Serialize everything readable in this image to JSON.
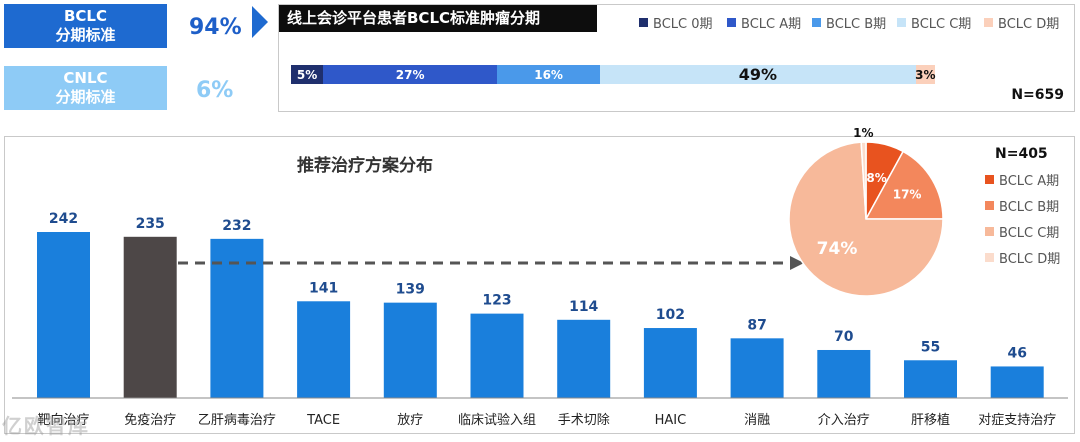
{
  "standards": [
    {
      "label_line1": "BCLC",
      "label_line2": "分期标准",
      "percent": "94%",
      "bg": "#1e6ad0",
      "pct_color": "#1e5fc8"
    },
    {
      "label_line1": "CNLC",
      "label_line2": "分期标准",
      "percent": "6%",
      "bg": "#8ecbf6",
      "pct_color": "#8ecbf6"
    }
  ],
  "stage_panel": {
    "title": "线上会诊平台患者BCLC标准肿瘤分期",
    "n_label": "N=659",
    "legend": [
      {
        "label": "BCLC 0期",
        "color": "#1f2f6d"
      },
      {
        "label": "BCLC A期",
        "color": "#2f58c9"
      },
      {
        "label": "BCLC B期",
        "color": "#4a99ea"
      },
      {
        "label": "BCLC C期",
        "color": "#c6e4f8"
      },
      {
        "label": "BCLC D期",
        "color": "#fbd0bb"
      }
    ]
  },
  "treatment_panel": {
    "title": "推荐治疗方案分布",
    "n_label": "N=405",
    "pie_legend": [
      {
        "label": "BCLC A期",
        "color": "#e8531f"
      },
      {
        "label": "BCLC B期",
        "color": "#f3875c"
      },
      {
        "label": "BCLC C期",
        "color": "#f7b99a"
      },
      {
        "label": "BCLC D期",
        "color": "#fbdccc"
      }
    ]
  },
  "watermark": "亿欧智库",
  "chart_data": [
    {
      "type": "bar",
      "orientation": "horizontal-stacked",
      "title": "线上会诊平台患者BCLC标准肿瘤分期",
      "categories": [
        "BCLC 0期",
        "BCLC A期",
        "BCLC B期",
        "BCLC C期",
        "BCLC D期"
      ],
      "values": [
        5,
        27,
        16,
        49,
        3
      ],
      "value_labels": [
        "5%",
        "27%",
        "16%",
        "49%",
        "3%"
      ],
      "unit": "%",
      "colors": [
        "#1f2f6d",
        "#2f58c9",
        "#4a99ea",
        "#c6e4f8",
        "#fbd0bb"
      ],
      "n": "N=659",
      "legend": "top-right"
    },
    {
      "type": "bar",
      "title": "推荐治疗方案分布",
      "categories": [
        "靶向治疗",
        "免疫治疗",
        "乙肝病毒治疗",
        "TACE",
        "放疗",
        "临床试验入组",
        "手术切除",
        "HAIC",
        "消融",
        "介入治疗",
        "肝移植",
        "对症支持治疗"
      ],
      "values": [
        242,
        235,
        232,
        141,
        139,
        123,
        114,
        102,
        87,
        70,
        55,
        46
      ],
      "colors": [
        "#1a7fdc",
        "#4d4747",
        "#1a7fdc",
        "#1a7fdc",
        "#1a7fdc",
        "#1a7fdc",
        "#1a7fdc",
        "#1a7fdc",
        "#1a7fdc",
        "#1a7fdc",
        "#1a7fdc",
        "#1a7fdc"
      ],
      "ylim": [
        0,
        260
      ]
    },
    {
      "type": "pie",
      "categories": [
        "BCLC A期",
        "BCLC B期",
        "BCLC C期",
        "BCLC D期"
      ],
      "values": [
        8,
        17,
        74,
        1
      ],
      "value_labels": [
        "8%",
        "17%",
        "74%",
        "1%"
      ],
      "colors": [
        "#e8531f",
        "#f3875c",
        "#f7b99a",
        "#fbdccc"
      ],
      "n": "N=405",
      "legend": "right"
    }
  ]
}
